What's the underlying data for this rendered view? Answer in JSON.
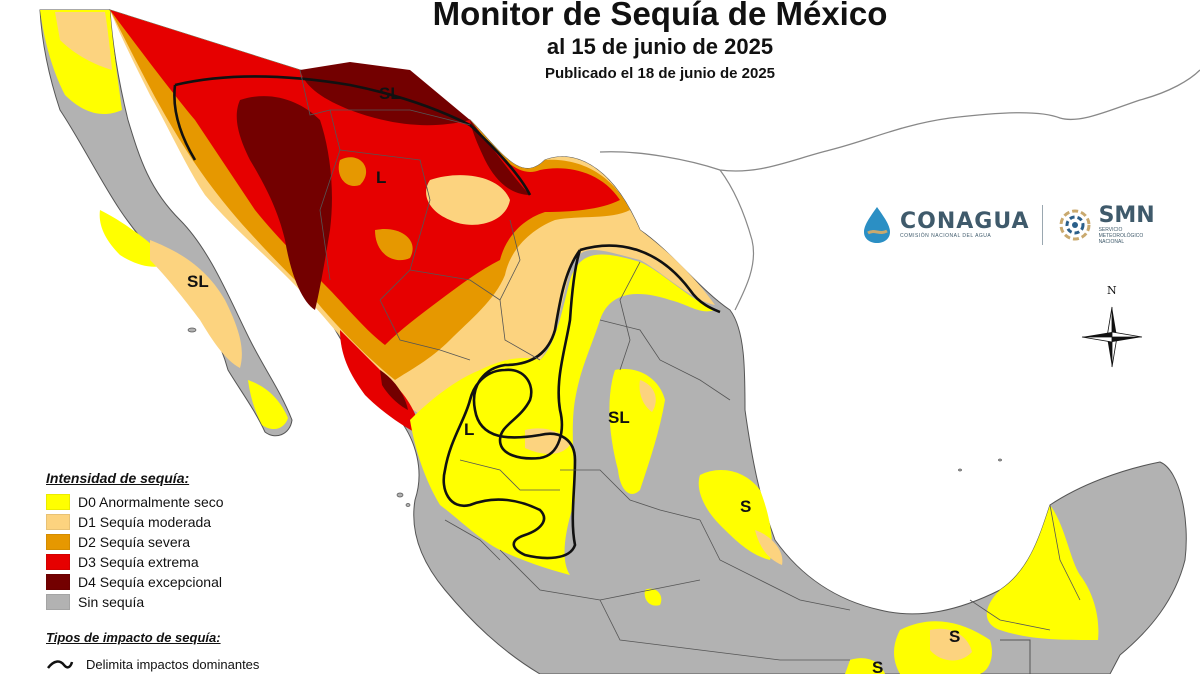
{
  "header": {
    "title": "Monitor de Sequía de México",
    "subtitle": "al 15 de junio de 2025",
    "published": "Publicado el 18 de junio de 2025"
  },
  "legend": {
    "title": "Intensidad de sequía:",
    "items": [
      {
        "code": "D0",
        "label": "D0 Anormalmente seco",
        "color": "#ffff00"
      },
      {
        "code": "D1",
        "label": "D1 Sequía moderada",
        "color": "#fcd37f"
      },
      {
        "code": "D2",
        "label": "D2 Sequía severa",
        "color": "#e69800"
      },
      {
        "code": "D3",
        "label": "D3 Sequía extrema",
        "color": "#e60000"
      },
      {
        "code": "D4",
        "label": "D4 Sequía excepcional",
        "color": "#730000"
      },
      {
        "code": "none",
        "label": "Sin sequía",
        "color": "#b2b2b2"
      }
    ],
    "impact_title": "Tipos de impacto de sequía:",
    "impact_line_label": "Delimita impactos dominantes"
  },
  "logos": {
    "conagua": "CONAGUA",
    "conagua_sub": "COMISIÓN NACIONAL DEL AGUA",
    "smn": "SMN",
    "smn_sub_1": "SERVICIO",
    "smn_sub_2": "METEOROLÓGICO",
    "smn_sub_3": "NACIONAL"
  },
  "compass": {
    "north": "N"
  },
  "impact_codes": {
    "sl_north": "SL",
    "l_north": "L",
    "sl_baja": "SL",
    "l_central": "L",
    "sl_east": "SL",
    "s_gulf": "S",
    "s_south": "S",
    "s_south2": "S"
  },
  "colors": {
    "water": "#ffffff",
    "coast": "#555555",
    "no_drought": "#b2b2b2",
    "us_land": "#ffffff"
  }
}
